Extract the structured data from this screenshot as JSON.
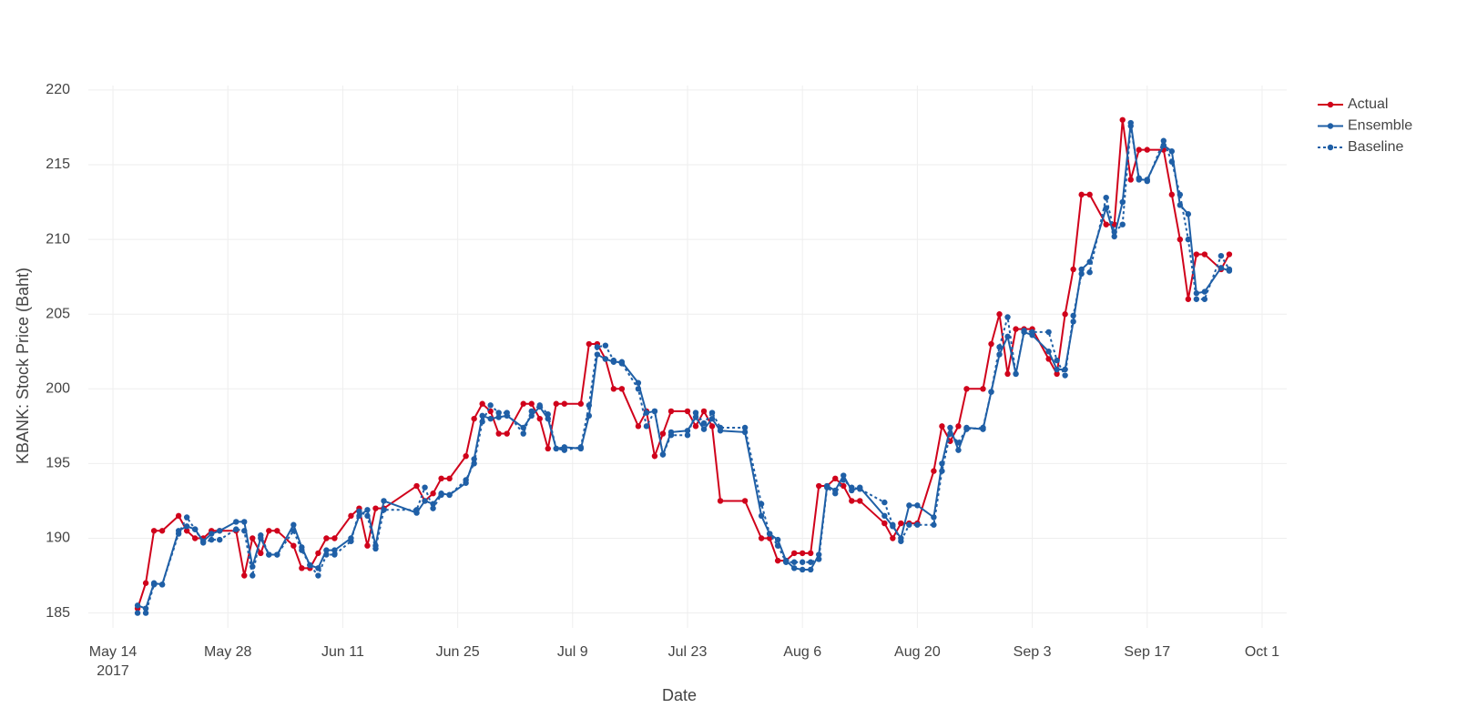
{
  "chart_data": {
    "type": "line",
    "x_label": "Date",
    "y_label": "KBANK: Stock Price (Baht)",
    "x": [
      "2017-05-17",
      "2017-05-18",
      "2017-05-19",
      "2017-05-20",
      "2017-05-22",
      "2017-05-23",
      "2017-05-24",
      "2017-05-25",
      "2017-05-26",
      "2017-05-27",
      "2017-05-29",
      "2017-05-30",
      "2017-05-31",
      "2017-06-01",
      "2017-06-02",
      "2017-06-03",
      "2017-06-05",
      "2017-06-06",
      "2017-06-07",
      "2017-06-08",
      "2017-06-09",
      "2017-06-10",
      "2017-06-12",
      "2017-06-13",
      "2017-06-14",
      "2017-06-15",
      "2017-06-16",
      "2017-06-20",
      "2017-06-21",
      "2017-06-22",
      "2017-06-23",
      "2017-06-24",
      "2017-06-26",
      "2017-06-27",
      "2017-06-28",
      "2017-06-29",
      "2017-06-30",
      "2017-07-01",
      "2017-07-03",
      "2017-07-04",
      "2017-07-05",
      "2017-07-06",
      "2017-07-07",
      "2017-07-08",
      "2017-07-10",
      "2017-07-11",
      "2017-07-12",
      "2017-07-13",
      "2017-07-14",
      "2017-07-15",
      "2017-07-17",
      "2017-07-18",
      "2017-07-19",
      "2017-07-20",
      "2017-07-21",
      "2017-07-23",
      "2017-07-24",
      "2017-07-25",
      "2017-07-26",
      "2017-07-27",
      "2017-07-30",
      "2017-08-01",
      "2017-08-02",
      "2017-08-03",
      "2017-08-04",
      "2017-08-05",
      "2017-08-06",
      "2017-08-07",
      "2017-08-08",
      "2017-08-09",
      "2017-08-10",
      "2017-08-11",
      "2017-08-12",
      "2017-08-13",
      "2017-08-16",
      "2017-08-17",
      "2017-08-18",
      "2017-08-19",
      "2017-08-20",
      "2017-08-22",
      "2017-08-23",
      "2017-08-24",
      "2017-08-25",
      "2017-08-26",
      "2017-08-28",
      "2017-08-29",
      "2017-08-30",
      "2017-08-31",
      "2017-09-01",
      "2017-09-02",
      "2017-09-03",
      "2017-09-05",
      "2017-09-06",
      "2017-09-07",
      "2017-09-08",
      "2017-09-09",
      "2017-09-10",
      "2017-09-12",
      "2017-09-13",
      "2017-09-14",
      "2017-09-15",
      "2017-09-16",
      "2017-09-17",
      "2017-09-19",
      "2017-09-20",
      "2017-09-21",
      "2017-09-22",
      "2017-09-23",
      "2017-09-24",
      "2017-09-26",
      "2017-09-27"
    ],
    "series": [
      {
        "name": "Actual",
        "color": "#d0021b",
        "dash": "solid",
        "values": [
          185.3,
          187,
          190.5,
          190.5,
          191.5,
          190.5,
          190,
          190,
          190.5,
          190.5,
          190.5,
          187.5,
          190,
          189,
          190.5,
          190.5,
          189.5,
          188,
          188,
          189,
          190,
          190,
          191.5,
          192,
          189.5,
          192,
          192,
          193.5,
          192.5,
          193,
          194,
          194,
          195.5,
          198,
          199,
          198.5,
          197,
          197,
          199,
          199,
          198,
          196,
          199,
          199,
          199,
          203,
          203,
          202,
          200,
          200,
          197.5,
          198.5,
          195.5,
          197,
          198.5,
          198.5,
          197.5,
          198.5,
          197.5,
          192.5,
          192.5,
          190,
          190,
          188.5,
          188.5,
          189,
          189,
          189,
          193.5,
          193.5,
          194,
          193.5,
          192.5,
          192.5,
          191,
          190,
          191,
          191,
          191,
          194.5,
          197.5,
          196.5,
          197.5,
          200,
          200,
          203,
          205,
          201,
          204,
          204,
          204,
          202,
          201,
          205,
          208,
          213,
          213,
          211,
          211,
          218,
          214,
          216,
          216,
          216,
          213,
          210,
          206,
          209,
          209,
          208,
          209
        ]
      },
      {
        "name": "Ensemble",
        "color": "#1f5fa6",
        "dash": "solid",
        "values": [
          185.5,
          185.3,
          187,
          186.9,
          190.5,
          190.8,
          190.6,
          189.8,
          190.3,
          190.5,
          191.1,
          191.1,
          188.1,
          190,
          188.9,
          188.9,
          190.9,
          189.4,
          188.2,
          188,
          189.2,
          189.2,
          190,
          191.5,
          191.9,
          189.5,
          192.5,
          191.7,
          192.5,
          192.3,
          193,
          192.9,
          193.7,
          195.3,
          198.2,
          198,
          198.1,
          198.2,
          197.4,
          198.2,
          198.8,
          198,
          196,
          196.1,
          196,
          198.2,
          202.3,
          202,
          201.8,
          201.8,
          200.4,
          198.4,
          198.5,
          195.6,
          197.1,
          197.2,
          198.1,
          197.3,
          198,
          197.2,
          197.1,
          191.5,
          190.3,
          189.9,
          188.5,
          188,
          187.9,
          187.9,
          188.9,
          193.5,
          193.2,
          194.2,
          193.2,
          193.4,
          191.5,
          190.8,
          190,
          192.2,
          192.2,
          191.4,
          195,
          197.4,
          195.9,
          197.4,
          197.3,
          199.8,
          202.3,
          203.5,
          201,
          203.8,
          203.6,
          202.5,
          201.3,
          201.3,
          204.5,
          208,
          208.5,
          212.1,
          210.2,
          212.5,
          217.8,
          214,
          214,
          216.3,
          215.9,
          212.3,
          211.7,
          206.4,
          206.5,
          208.1,
          207.9
        ]
      },
      {
        "name": "Baseline",
        "color": "#1f5fa6",
        "dash": "dot",
        "values": [
          185,
          185,
          186.9,
          186.9,
          190.3,
          191.4,
          190.6,
          189.7,
          189.9,
          189.9,
          190.6,
          190.5,
          187.5,
          190.2,
          188.9,
          188.9,
          190.5,
          189.2,
          188.2,
          187.5,
          188.9,
          188.9,
          189.8,
          191.8,
          191.5,
          189.3,
          191.9,
          191.9,
          193.4,
          192,
          192.9,
          192.9,
          193.9,
          195,
          197.8,
          198.9,
          198.4,
          198.4,
          197,
          198.5,
          198.9,
          198.3,
          196,
          195.9,
          196.1,
          198.9,
          202.8,
          202.9,
          201.9,
          201.7,
          200,
          197.5,
          198.5,
          195.6,
          196.9,
          196.9,
          198.4,
          197.7,
          198.4,
          197.4,
          197.4,
          192.3,
          190.3,
          189.5,
          188.4,
          188.4,
          188.4,
          188.4,
          188.6,
          193.4,
          193,
          193.9,
          193.4,
          193.3,
          192.4,
          190.9,
          189.8,
          190.9,
          190.9,
          190.9,
          194.5,
          197,
          196.4,
          197.3,
          197.4,
          199.8,
          202.8,
          204.8,
          201,
          203.9,
          203.8,
          203.8,
          201.9,
          200.9,
          204.9,
          207.7,
          207.8,
          212.8,
          210.5,
          211,
          217.6,
          214.1,
          213.9,
          216.6,
          215.2,
          213,
          210,
          206,
          206,
          208.9,
          208
        ]
      }
    ],
    "xlim": [
      "2017-05-11",
      "2017-10-04"
    ],
    "xticks": [
      {
        "value": "2017-05-14",
        "label": "May 14\n2017"
      },
      {
        "value": "2017-05-28",
        "label": "May 28"
      },
      {
        "value": "2017-06-11",
        "label": "Jun 11"
      },
      {
        "value": "2017-06-25",
        "label": "Jun 25"
      },
      {
        "value": "2017-07-09",
        "label": "Jul 9"
      },
      {
        "value": "2017-07-23",
        "label": "Jul 23"
      },
      {
        "value": "2017-08-06",
        "label": "Aug 6"
      },
      {
        "value": "2017-08-20",
        "label": "Aug 20"
      },
      {
        "value": "2017-09-03",
        "label": "Sep 3"
      },
      {
        "value": "2017-09-17",
        "label": "Sep 17"
      },
      {
        "value": "2017-10-01",
        "label": "Oct 1"
      }
    ],
    "ylim": [
      184,
      220.3
    ],
    "yticks": [
      185,
      190,
      195,
      200,
      205,
      210,
      215,
      220
    ],
    "grid": true,
    "legend": "top-right"
  }
}
